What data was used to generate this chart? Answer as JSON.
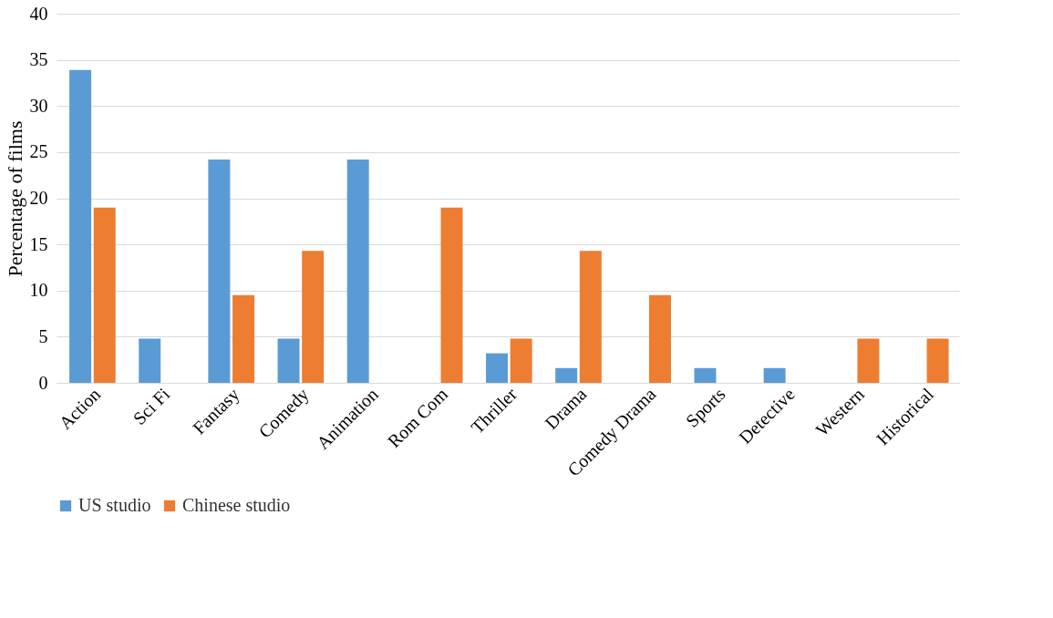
{
  "chart_data": {
    "type": "bar",
    "ylabel": "Percentage of films",
    "categories": [
      "Action",
      "Sci Fi",
      "Fantasy",
      "Comedy",
      "Animation",
      "Rom Com",
      "Thriller",
      "Drama",
      "Comedy Drama",
      "Sports",
      "Detective",
      "Western",
      "Historical"
    ],
    "series": [
      {
        "name": "US studio",
        "color": "#5b9bd5",
        "values": [
          33.9,
          4.8,
          24.2,
          4.8,
          24.2,
          0,
          3.2,
          1.6,
          0,
          1.6,
          1.6,
          0,
          0
        ]
      },
      {
        "name": "Chinese studio",
        "color": "#ed7d31",
        "values": [
          19.0,
          0,
          9.5,
          14.3,
          0,
          19.0,
          4.8,
          14.3,
          9.5,
          0,
          0,
          4.8,
          4.8
        ]
      }
    ],
    "ylim": [
      0,
      40
    ],
    "yticks": [
      0,
      5,
      10,
      15,
      20,
      25,
      30,
      35,
      40
    ],
    "grid": "y",
    "legend": "bottom"
  }
}
